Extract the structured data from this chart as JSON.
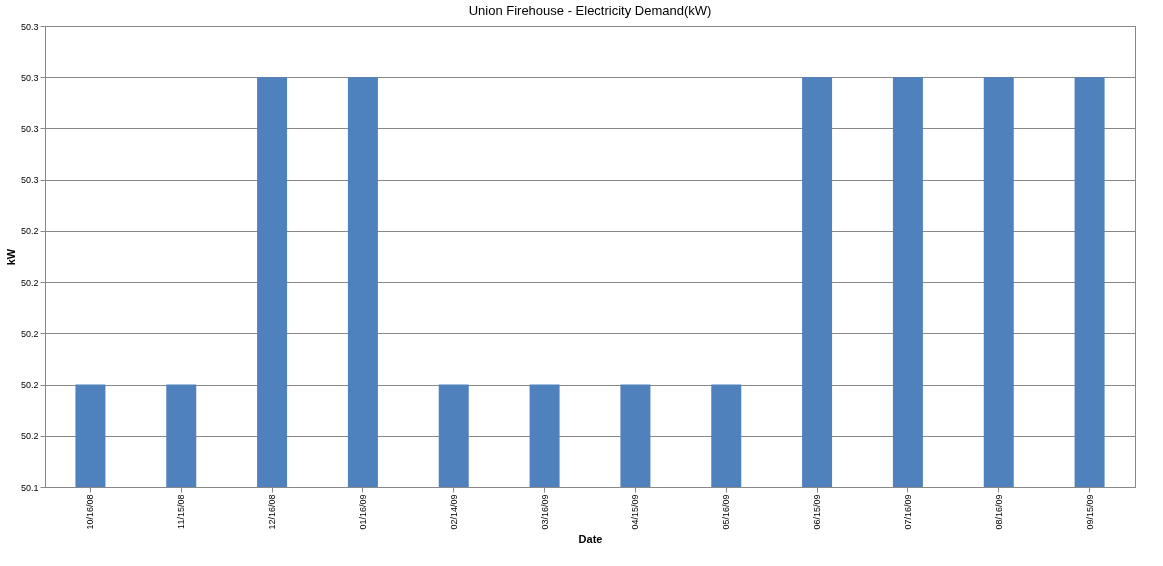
{
  "chart_data": {
    "type": "bar",
    "title": "Union Firehouse - Electricity Demand(kW)",
    "xlabel": "Date",
    "ylabel": "kW",
    "categories": [
      "10/16/08",
      "11/15/08",
      "12/16/08",
      "01/16/09",
      "02/14/09",
      "03/16/09",
      "04/15/09",
      "05/16/09",
      "06/15/09",
      "07/16/09",
      "08/16/09",
      "09/15/09"
    ],
    "values": [
      50.18,
      50.18,
      50.3,
      50.3,
      50.18,
      50.18,
      50.18,
      50.18,
      50.3,
      50.3,
      50.3,
      50.3
    ],
    "color": "#4f81bd",
    "ylim": [
      50.14,
      50.32
    ],
    "yticks": [
      {
        "value": 50.14,
        "label": "50.1"
      },
      {
        "value": 50.16,
        "label": "50.2"
      },
      {
        "value": 50.18,
        "label": "50.2"
      },
      {
        "value": 50.2,
        "label": "50.2"
      },
      {
        "value": 50.22,
        "label": "50.2"
      },
      {
        "value": 50.24,
        "label": "50.2"
      },
      {
        "value": 50.26,
        "label": "50.3"
      },
      {
        "value": 50.28,
        "label": "50.3"
      },
      {
        "value": 50.3,
        "label": "50.3"
      },
      {
        "value": 50.32,
        "label": "50.3"
      }
    ],
    "grid": "y"
  }
}
